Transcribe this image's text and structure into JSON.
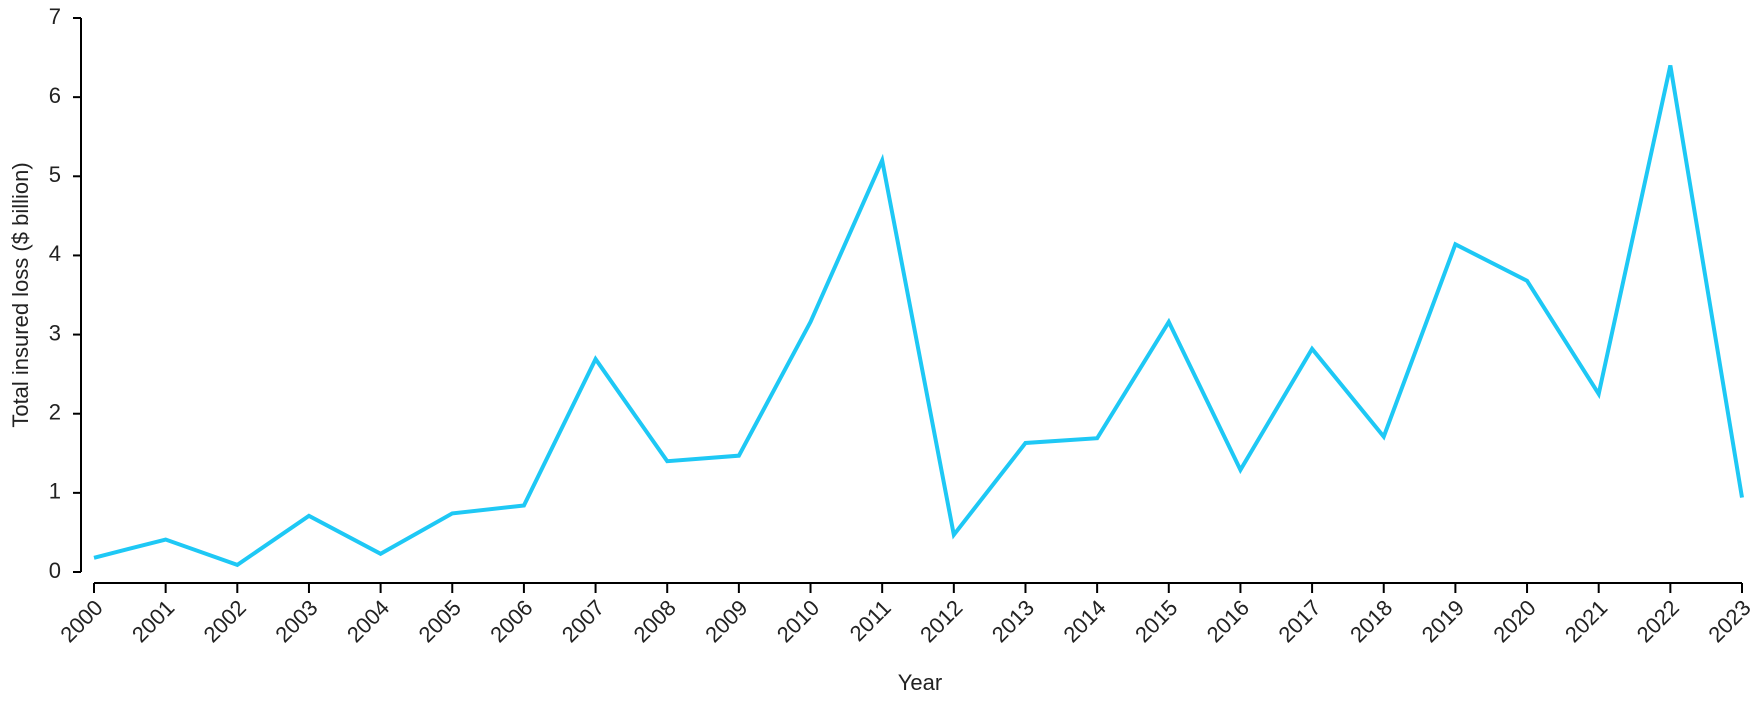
{
  "chart_data": {
    "type": "line",
    "x_label": "Year",
    "y_label": "Total insured loss ($ billion)",
    "x": [
      2000,
      2001,
      2002,
      2003,
      2004,
      2005,
      2006,
      2007,
      2008,
      2009,
      2010,
      2011,
      2012,
      2013,
      2014,
      2015,
      2016,
      2017,
      2018,
      2019,
      2020,
      2021,
      2022,
      2023
    ],
    "series": [
      {
        "color": "#1ec8f5",
        "values": [
          0.18,
          0.41,
          0.09,
          0.71,
          0.23,
          0.74,
          0.84,
          2.69,
          1.4,
          1.47,
          3.16,
          5.2,
          0.47,
          1.63,
          1.69,
          3.16,
          1.29,
          2.82,
          1.71,
          4.14,
          3.68,
          2.25,
          6.4,
          0.94
        ]
      }
    ],
    "xlim": [
      2000,
      2023
    ],
    "xticks": [
      2000,
      2001,
      2002,
      2003,
      2004,
      2005,
      2006,
      2007,
      2008,
      2009,
      2010,
      2011,
      2012,
      2013,
      2014,
      2015,
      2016,
      2017,
      2018,
      2019,
      2020,
      2021,
      2022,
      2023
    ],
    "ylim": [
      0,
      7
    ],
    "yticks": [
      0,
      1,
      2,
      3,
      4,
      5,
      6,
      7
    ],
    "grid": false
  }
}
